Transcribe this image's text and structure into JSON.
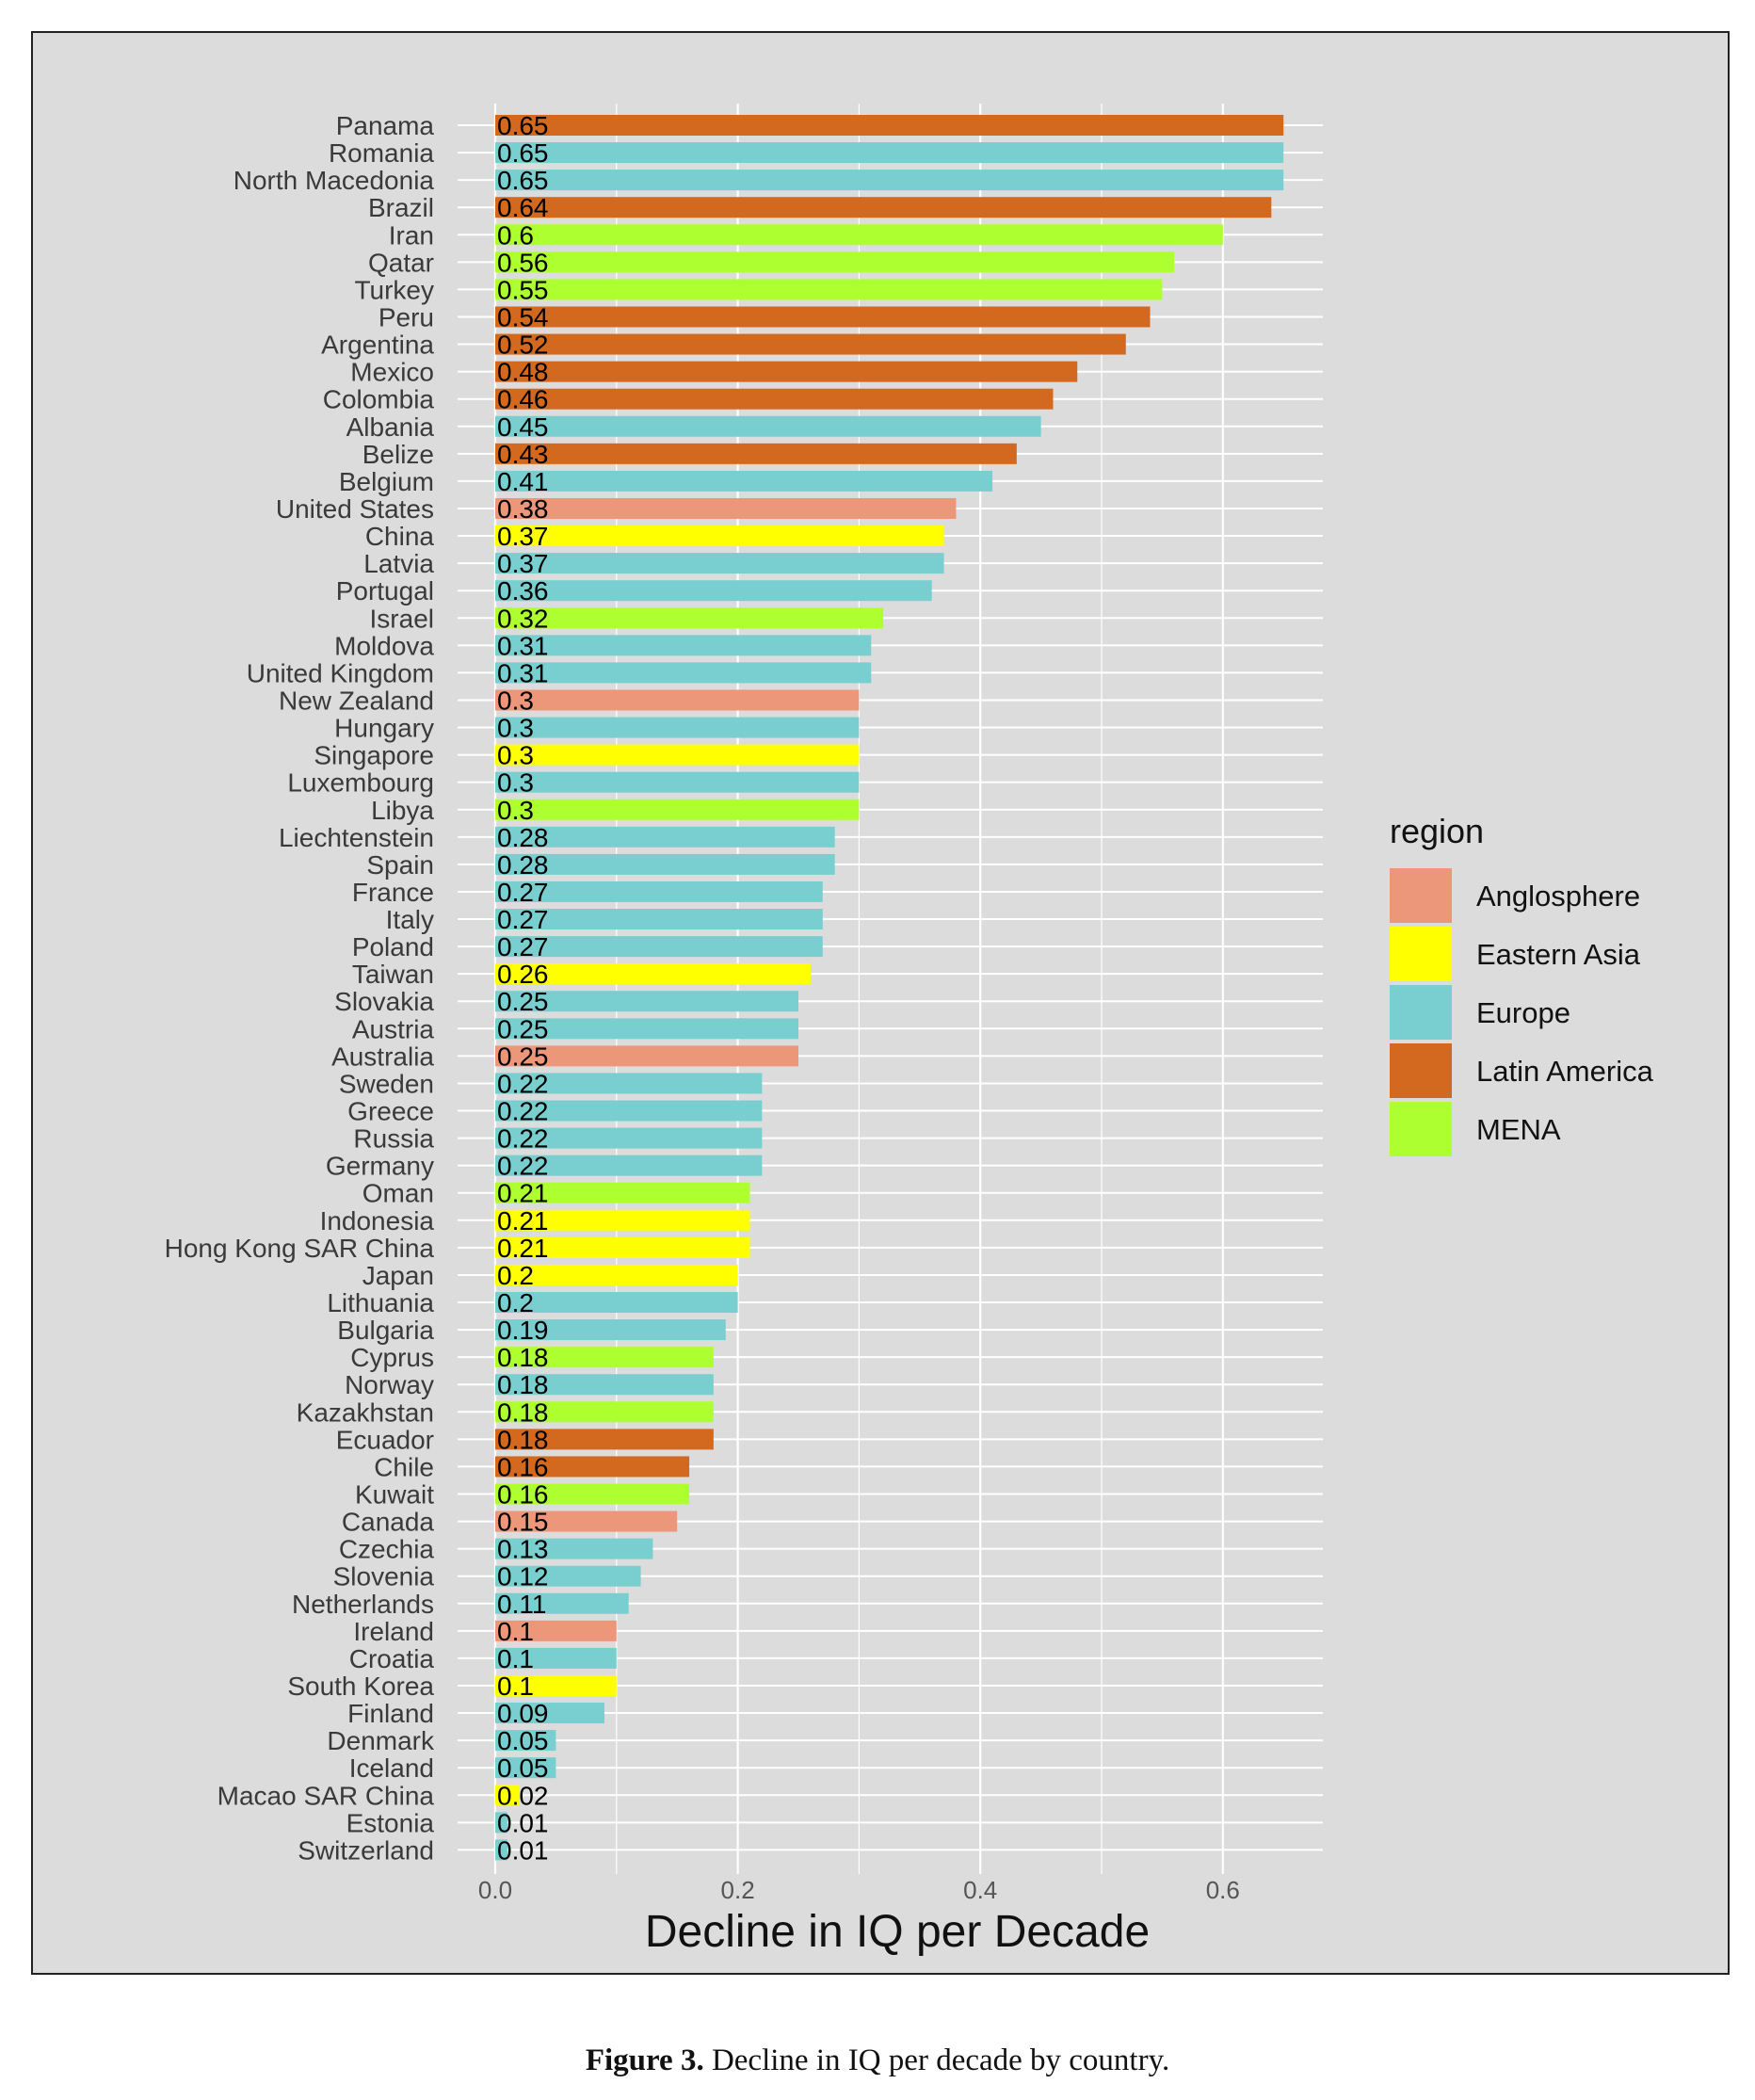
{
  "chart_data": {
    "type": "bar",
    "orientation": "horizontal",
    "xlabel": "Decline in IQ per Decade",
    "ylabel": "",
    "xlim": [
      0,
      0.68
    ],
    "xticks": [
      0.0,
      0.2,
      0.4,
      0.6
    ],
    "xtick_labels": [
      "0.0",
      "0.2",
      "0.4",
      "0.6"
    ],
    "grid": true,
    "legend_title": "region",
    "legend_position": "right",
    "legend": [
      {
        "name": "Anglosphere",
        "color": "#ec967a"
      },
      {
        "name": "Eastern Asia",
        "color": "#ffff00"
      },
      {
        "name": "Europe",
        "color": "#79cfcf"
      },
      {
        "name": "Latin America",
        "color": "#d2691e"
      },
      {
        "name": "MENA",
        "color": "#adff2f"
      }
    ],
    "bars": [
      {
        "category": "Panama",
        "value": 0.65,
        "label": "0.65",
        "region": "Latin America"
      },
      {
        "category": "Romania",
        "value": 0.65,
        "label": "0.65",
        "region": "Europe"
      },
      {
        "category": "North Macedonia",
        "value": 0.65,
        "label": "0.65",
        "region": "Europe"
      },
      {
        "category": "Brazil",
        "value": 0.64,
        "label": "0.64",
        "region": "Latin America"
      },
      {
        "category": "Iran",
        "value": 0.6,
        "label": "0.6",
        "region": "MENA"
      },
      {
        "category": "Qatar",
        "value": 0.56,
        "label": "0.56",
        "region": "MENA"
      },
      {
        "category": "Turkey",
        "value": 0.55,
        "label": "0.55",
        "region": "MENA"
      },
      {
        "category": "Peru",
        "value": 0.54,
        "label": "0.54",
        "region": "Latin America"
      },
      {
        "category": "Argentina",
        "value": 0.52,
        "label": "0.52",
        "region": "Latin America"
      },
      {
        "category": "Mexico",
        "value": 0.48,
        "label": "0.48",
        "region": "Latin America"
      },
      {
        "category": "Colombia",
        "value": 0.46,
        "label": "0.46",
        "region": "Latin America"
      },
      {
        "category": "Albania",
        "value": 0.45,
        "label": "0.45",
        "region": "Europe"
      },
      {
        "category": "Belize",
        "value": 0.43,
        "label": "0.43",
        "region": "Latin America"
      },
      {
        "category": "Belgium",
        "value": 0.41,
        "label": "0.41",
        "region": "Europe"
      },
      {
        "category": "United States",
        "value": 0.38,
        "label": "0.38",
        "region": "Anglosphere"
      },
      {
        "category": "China",
        "value": 0.37,
        "label": "0.37",
        "region": "Eastern Asia"
      },
      {
        "category": "Latvia",
        "value": 0.37,
        "label": "0.37",
        "region": "Europe"
      },
      {
        "category": "Portugal",
        "value": 0.36,
        "label": "0.36",
        "region": "Europe"
      },
      {
        "category": "Israel",
        "value": 0.32,
        "label": "0.32",
        "region": "MENA"
      },
      {
        "category": "Moldova",
        "value": 0.31,
        "label": "0.31",
        "region": "Europe"
      },
      {
        "category": "United Kingdom",
        "value": 0.31,
        "label": "0.31",
        "region": "Europe"
      },
      {
        "category": "New Zealand",
        "value": 0.3,
        "label": "0.3",
        "region": "Anglosphere"
      },
      {
        "category": "Hungary",
        "value": 0.3,
        "label": "0.3",
        "region": "Europe"
      },
      {
        "category": "Singapore",
        "value": 0.3,
        "label": "0.3",
        "region": "Eastern Asia"
      },
      {
        "category": "Luxembourg",
        "value": 0.3,
        "label": "0.3",
        "region": "Europe"
      },
      {
        "category": "Libya",
        "value": 0.3,
        "label": "0.3",
        "region": "MENA"
      },
      {
        "category": "Liechtenstein",
        "value": 0.28,
        "label": "0.28",
        "region": "Europe"
      },
      {
        "category": "Spain",
        "value": 0.28,
        "label": "0.28",
        "region": "Europe"
      },
      {
        "category": "France",
        "value": 0.27,
        "label": "0.27",
        "region": "Europe"
      },
      {
        "category": "Italy",
        "value": 0.27,
        "label": "0.27",
        "region": "Europe"
      },
      {
        "category": "Poland",
        "value": 0.27,
        "label": "0.27",
        "region": "Europe"
      },
      {
        "category": "Taiwan",
        "value": 0.26,
        "label": "0.26",
        "region": "Eastern Asia"
      },
      {
        "category": "Slovakia",
        "value": 0.25,
        "label": "0.25",
        "region": "Europe"
      },
      {
        "category": "Austria",
        "value": 0.25,
        "label": "0.25",
        "region": "Europe"
      },
      {
        "category": "Australia",
        "value": 0.25,
        "label": "0.25",
        "region": "Anglosphere"
      },
      {
        "category": "Sweden",
        "value": 0.22,
        "label": "0.22",
        "region": "Europe"
      },
      {
        "category": "Greece",
        "value": 0.22,
        "label": "0.22",
        "region": "Europe"
      },
      {
        "category": "Russia",
        "value": 0.22,
        "label": "0.22",
        "region": "Europe"
      },
      {
        "category": "Germany",
        "value": 0.22,
        "label": "0.22",
        "region": "Europe"
      },
      {
        "category": "Oman",
        "value": 0.21,
        "label": "0.21",
        "region": "MENA"
      },
      {
        "category": "Indonesia",
        "value": 0.21,
        "label": "0.21",
        "region": "Eastern Asia"
      },
      {
        "category": "Hong Kong SAR China",
        "value": 0.21,
        "label": "0.21",
        "region": "Eastern Asia"
      },
      {
        "category": "Japan",
        "value": 0.2,
        "label": "0.2",
        "region": "Eastern Asia"
      },
      {
        "category": "Lithuania",
        "value": 0.2,
        "label": "0.2",
        "region": "Europe"
      },
      {
        "category": "Bulgaria",
        "value": 0.19,
        "label": "0.19",
        "region": "Europe"
      },
      {
        "category": "Cyprus",
        "value": 0.18,
        "label": "0.18",
        "region": "MENA"
      },
      {
        "category": "Norway",
        "value": 0.18,
        "label": "0.18",
        "region": "Europe"
      },
      {
        "category": "Kazakhstan",
        "value": 0.18,
        "label": "0.18",
        "region": "MENA"
      },
      {
        "category": "Ecuador",
        "value": 0.18,
        "label": "0.18",
        "region": "Latin America"
      },
      {
        "category": "Chile",
        "value": 0.16,
        "label": "0.16",
        "region": "Latin America"
      },
      {
        "category": "Kuwait",
        "value": 0.16,
        "label": "0.16",
        "region": "MENA"
      },
      {
        "category": "Canada",
        "value": 0.15,
        "label": "0.15",
        "region": "Anglosphere"
      },
      {
        "category": "Czechia",
        "value": 0.13,
        "label": "0.13",
        "region": "Europe"
      },
      {
        "category": "Slovenia",
        "value": 0.12,
        "label": "0.12",
        "region": "Europe"
      },
      {
        "category": "Netherlands",
        "value": 0.11,
        "label": "0.11",
        "region": "Europe"
      },
      {
        "category": "Ireland",
        "value": 0.1,
        "label": "0.1",
        "region": "Anglosphere"
      },
      {
        "category": "Croatia",
        "value": 0.1,
        "label": "0.1",
        "region": "Europe"
      },
      {
        "category": "South Korea",
        "value": 0.1,
        "label": "0.1",
        "region": "Eastern Asia"
      },
      {
        "category": "Finland",
        "value": 0.09,
        "label": "0.09",
        "region": "Europe"
      },
      {
        "category": "Denmark",
        "value": 0.05,
        "label": "0.05",
        "region": "Europe"
      },
      {
        "category": "Iceland",
        "value": 0.05,
        "label": "0.05",
        "region": "Europe"
      },
      {
        "category": "Macao SAR China",
        "value": 0.02,
        "label": "0.02",
        "region": "Eastern Asia"
      },
      {
        "category": "Estonia",
        "value": 0.01,
        "label": "0.01",
        "region": "Europe"
      },
      {
        "category": "Switzerland",
        "value": 0.01,
        "label": "0.01",
        "region": "Europe"
      }
    ]
  },
  "caption": {
    "label": "Figure 3.",
    "text": " Decline in IQ per decade by country."
  }
}
